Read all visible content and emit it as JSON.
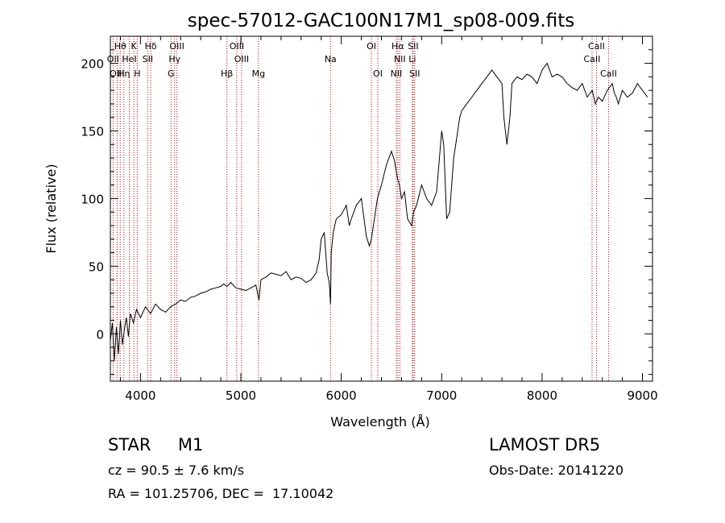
{
  "chart_data": {
    "type": "line",
    "title": "spec-57012-GAC100N17M1_sp08-009.fits",
    "xlabel": "Wavelength (Å)",
    "ylabel": "Flux (relative)",
    "xlim": [
      3700,
      9100
    ],
    "ylim": [
      -35,
      220
    ],
    "xticks": [
      4000,
      5000,
      6000,
      7000,
      8000,
      9000
    ],
    "yticks": [
      0,
      50,
      100,
      150,
      200
    ],
    "grid": false,
    "line_color": "#000000",
    "marker_color": "#cc0000",
    "series": [
      {
        "x": [
          3700,
          3720,
          3740,
          3760,
          3780,
          3800,
          3820,
          3840,
          3860,
          3880,
          3900,
          3930,
          3960,
          4000,
          4050,
          4100,
          4150,
          4200,
          4250,
          4300,
          4350,
          4400,
          4450,
          4500,
          4550,
          4600,
          4650,
          4700,
          4750,
          4800,
          4830,
          4860,
          4900,
          4950,
          5000,
          5050,
          5100,
          5150,
          5180,
          5200,
          5250,
          5300,
          5350,
          5400,
          5450,
          5500,
          5550,
          5600,
          5650,
          5700,
          5750,
          5780,
          5800,
          5830,
          5860,
          5880,
          5893,
          5900,
          5920,
          5950,
          6000,
          6050,
          6080,
          6100,
          6150,
          6200,
          6250,
          6280,
          6300,
          6330,
          6360,
          6400,
          6450,
          6500,
          6530,
          6560,
          6580,
          6600,
          6630,
          6660,
          6700,
          6720,
          6750,
          6800,
          6850,
          6900,
          6950,
          7000,
          7020,
          7050,
          7080,
          7100,
          7120,
          7150,
          7180,
          7200,
          7250,
          7300,
          7350,
          7400,
          7450,
          7500,
          7550,
          7600,
          7620,
          7650,
          7680,
          7700,
          7750,
          7800,
          7850,
          7900,
          7950,
          8000,
          8050,
          8100,
          8150,
          8200,
          8250,
          8300,
          8350,
          8400,
          8450,
          8500,
          8530,
          8560,
          8600,
          8650,
          8700,
          8720,
          8740,
          8760,
          8800,
          8850,
          8900,
          8950,
          9000,
          9050
        ],
        "y": [
          -5,
          8,
          -20,
          5,
          -15,
          10,
          -8,
          3,
          12,
          -2,
          15,
          8,
          18,
          12,
          20,
          15,
          22,
          18,
          16,
          20,
          22,
          25,
          24,
          27,
          28,
          30,
          31,
          33,
          34,
          35,
          37,
          35,
          38,
          34,
          33,
          32,
          34,
          36,
          25,
          40,
          42,
          45,
          44,
          43,
          46,
          40,
          42,
          41,
          38,
          40,
          45,
          55,
          70,
          75,
          45,
          38,
          22,
          60,
          75,
          85,
          88,
          95,
          80,
          85,
          95,
          100,
          72,
          65,
          70,
          85,
          100,
          110,
          125,
          135,
          128,
          115,
          110,
          100,
          105,
          85,
          80,
          90,
          95,
          110,
          100,
          95,
          105,
          150,
          140,
          85,
          90,
          110,
          130,
          145,
          160,
          165,
          170,
          175,
          180,
          185,
          190,
          195,
          190,
          185,
          160,
          140,
          160,
          185,
          190,
          188,
          192,
          190,
          185,
          195,
          200,
          190,
          192,
          190,
          185,
          182,
          180,
          185,
          175,
          180,
          170,
          175,
          172,
          180,
          185,
          178,
          175,
          170,
          180,
          175,
          178,
          185,
          180,
          175
        ]
      }
    ],
    "lines": [
      {
        "name": "Hθ",
        "x": 3798,
        "row": 0
      },
      {
        "name": "K",
        "x": 3934,
        "row": 0
      },
      {
        "name": "Hδ",
        "x": 4102,
        "row": 0
      },
      {
        "name": "OIII",
        "x": 4363,
        "row": 0
      },
      {
        "name": "OIII",
        "x": 4959,
        "row": 0
      },
      {
        "name": "OI",
        "x": 6300,
        "row": 0
      },
      {
        "name": "Hα",
        "x": 6563,
        "row": 0
      },
      {
        "name": "SII",
        "x": 6716,
        "row": 0
      },
      {
        "name": "CaII",
        "x": 8542,
        "row": 0
      },
      {
        "name": "OII",
        "x": 3727,
        "row": 1
      },
      {
        "name": "HeI",
        "x": 3889,
        "row": 1
      },
      {
        "name": "SII",
        "x": 4072,
        "row": 1
      },
      {
        "name": "Hγ",
        "x": 4340,
        "row": 1
      },
      {
        "name": "OIII",
        "x": 5007,
        "row": 1
      },
      {
        "name": "NII",
        "x": 6583,
        "row": 1
      },
      {
        "name": "Li",
        "x": 6708,
        "row": 1
      },
      {
        "name": "CaII",
        "x": 8498,
        "row": 1
      },
      {
        "name": "OIII",
        "x": 3767,
        "row": 2
      },
      {
        "name": "Hη",
        "x": 3835,
        "row": 2
      },
      {
        "name": "H",
        "x": 3968,
        "row": 2
      },
      {
        "name": "G",
        "x": 4304,
        "row": 2
      },
      {
        "name": "Hβ",
        "x": 4861,
        "row": 2
      },
      {
        "name": "Mg",
        "x": 5175,
        "row": 2
      },
      {
        "name": "Na",
        "x": 5893,
        "row": 1
      },
      {
        "name": "OI",
        "x": 6364,
        "row": 2
      },
      {
        "name": "NII",
        "x": 6548,
        "row": 2
      },
      {
        "name": "SII",
        "x": 6731,
        "row": 2
      },
      {
        "name": "CaII",
        "x": 8662,
        "row": 2
      }
    ]
  },
  "info": {
    "star_class": "STAR     M1",
    "cz": "cz = 90.5 ± 7.6 km/s",
    "radec": "RA = 101.25706, DEC =  17.10042",
    "survey": "LAMOST DR5",
    "obs_date": "Obs-Date: 20141220"
  }
}
